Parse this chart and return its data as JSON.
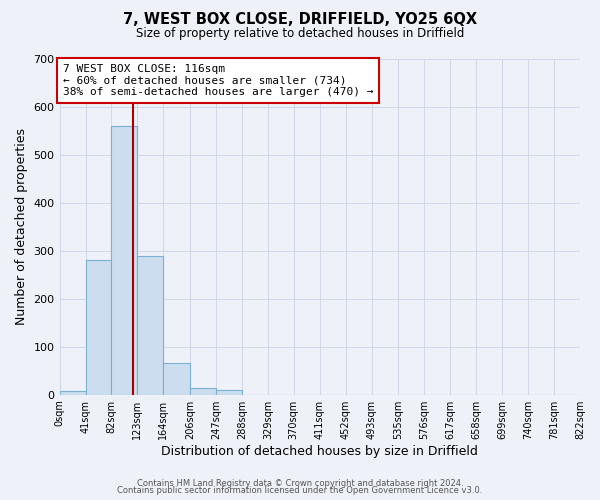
{
  "title": "7, WEST BOX CLOSE, DRIFFIELD, YO25 6QX",
  "subtitle": "Size of property relative to detached houses in Driffield",
  "xlabel": "Distribution of detached houses by size in Driffield",
  "ylabel": "Number of detached properties",
  "bar_values": [
    7,
    280,
    560,
    290,
    67,
    15,
    10,
    0,
    0,
    0,
    0,
    0,
    0,
    0,
    0,
    0,
    0,
    0,
    0,
    0
  ],
  "bin_edges": [
    0,
    41,
    82,
    123,
    164,
    206,
    247,
    288,
    329,
    370,
    411,
    452,
    493,
    535,
    576,
    617,
    658,
    699,
    740,
    781,
    822
  ],
  "tick_labels": [
    "0sqm",
    "41sqm",
    "82sqm",
    "123sqm",
    "164sqm",
    "206sqm",
    "247sqm",
    "288sqm",
    "329sqm",
    "370sqm",
    "411sqm",
    "452sqm",
    "493sqm",
    "535sqm",
    "576sqm",
    "617sqm",
    "658sqm",
    "699sqm",
    "740sqm",
    "781sqm",
    "822sqm"
  ],
  "bar_color": "#ccddf0",
  "bar_edge_color": "#7ab0d4",
  "vline_x": 116,
  "vline_color": "#aa0000",
  "annotation_box_text": "7 WEST BOX CLOSE: 116sqm\n← 60% of detached houses are smaller (734)\n38% of semi-detached houses are larger (470) →",
  "annotation_box_color": "#ffffff",
  "annotation_box_edge_color": "#cc0000",
  "ylim": [
    0,
    700
  ],
  "yticks": [
    0,
    100,
    200,
    300,
    400,
    500,
    600,
    700
  ],
  "grid_color": "#d0d8e8",
  "bg_color": "#eef2f8",
  "footer_line1": "Contains HM Land Registry data © Crown copyright and database right 2024.",
  "footer_line2": "Contains public sector information licensed under the Open Government Licence v3.0."
}
